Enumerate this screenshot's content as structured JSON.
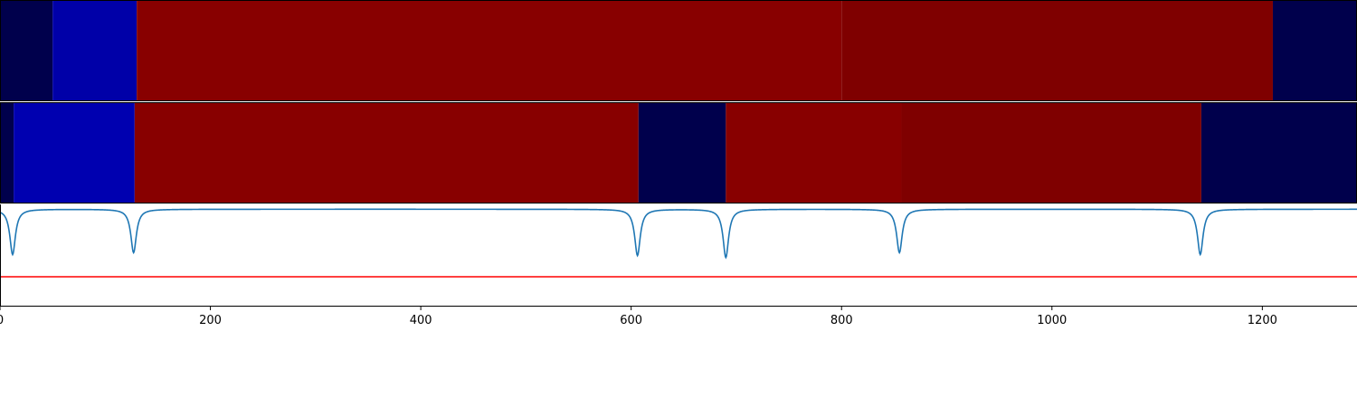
{
  "chart_data": {
    "type": "heatmap",
    "xlim": [
      0,
      1290
    ],
    "x_ticks": [
      0,
      200,
      400,
      600,
      800,
      1000,
      1200
    ],
    "x_tick_labels": [
      "0",
      "200",
      "400",
      "600",
      "800",
      "1000",
      "1200"
    ],
    "grid": false,
    "segment_rows": [
      {
        "segments": [
          {
            "start": 0,
            "end": 50,
            "color": "#00004c"
          },
          {
            "start": 50,
            "end": 130,
            "color": "#0000a8"
          },
          {
            "start": 130,
            "end": 800,
            "color": "#880000"
          },
          {
            "start": 800,
            "end": 1210,
            "color": "#7f0000"
          },
          {
            "start": 1210,
            "end": 1290,
            "color": "#00004c"
          }
        ]
      },
      {
        "segments": [
          {
            "start": 0,
            "end": 13,
            "color": "#00004c"
          },
          {
            "start": 13,
            "end": 128,
            "color": "#0000b0"
          },
          {
            "start": 128,
            "end": 607,
            "color": "#880000"
          },
          {
            "start": 607,
            "end": 690,
            "color": "#00004c"
          },
          {
            "start": 690,
            "end": 857,
            "color": "#880000"
          },
          {
            "start": 857,
            "end": 1142,
            "color": "#7f0000"
          },
          {
            "start": 1142,
            "end": 1290,
            "color": "#00004c"
          }
        ]
      }
    ],
    "line_series": {
      "color": "#1f77b4",
      "ylim": [
        -1.0,
        0.05
      ],
      "baseline": 0,
      "dips": [
        {
          "x": 12,
          "depth": 0.47
        },
        {
          "x": 127,
          "depth": 0.45
        },
        {
          "x": 606,
          "depth": 0.48
        },
        {
          "x": 690,
          "depth": 0.5
        },
        {
          "x": 855,
          "depth": 0.45
        },
        {
          "x": 1141,
          "depth": 0.47
        }
      ]
    },
    "threshold": {
      "value": -0.7,
      "color": "#ff0000"
    }
  }
}
